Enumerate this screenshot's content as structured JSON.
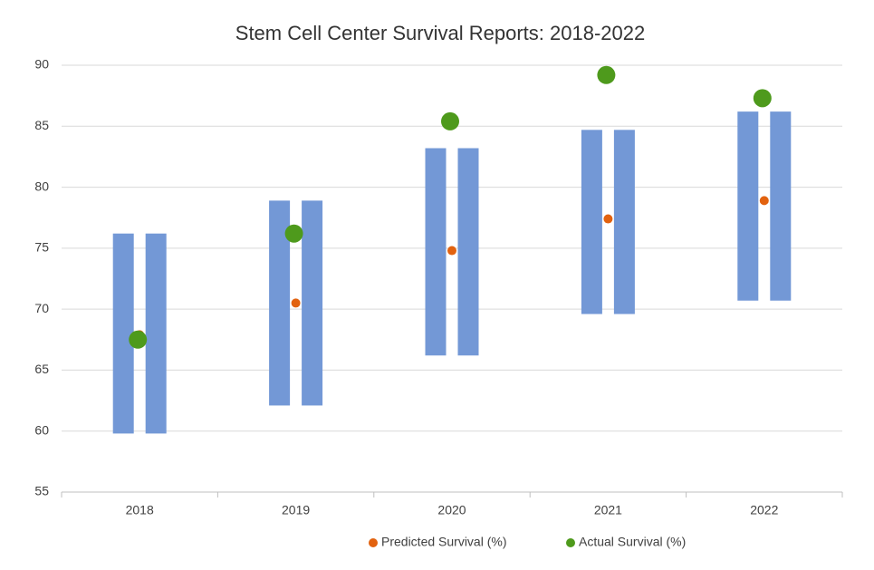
{
  "chart_data": {
    "type": "range-scatter",
    "title": "Stem Cell Center Survival Reports: 2018-2022",
    "categories": [
      "2018",
      "2019",
      "2020",
      "2021",
      "2022"
    ],
    "range_color": "#7398d6",
    "range_low": [
      59.8,
      62.1,
      66.2,
      69.6,
      70.7
    ],
    "range_high": [
      76.2,
      78.9,
      83.2,
      84.7,
      86.2
    ],
    "series": [
      {
        "name": "Predicted Survival (%)",
        "color": "#e2620f",
        "values": [
          67.9,
          70.5,
          74.8,
          77.4,
          78.9
        ]
      },
      {
        "name": "Actual Survival (%)",
        "color": "#4e9a1c",
        "values": [
          67.5,
          76.2,
          85.4,
          89.2,
          87.3
        ]
      }
    ],
    "ylim": [
      55,
      90
    ],
    "yticks": [
      55,
      60,
      65,
      70,
      75,
      80,
      85,
      90
    ],
    "grid": true,
    "legend": "bottom"
  }
}
